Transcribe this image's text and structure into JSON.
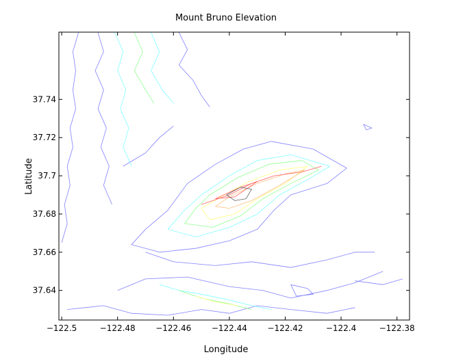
{
  "chart_data": {
    "type": "contour",
    "title": "Mount Bruno Elevation",
    "xlabel": "Longitude",
    "ylabel": "Latitude",
    "xlim": [
      -122.501,
      -122.3755
    ],
    "ylim": [
      37.6245,
      37.7752
    ],
    "x_ticks": [
      -122.5,
      -122.48,
      -122.46,
      -122.44,
      -122.42,
      -122.4,
      -122.38
    ],
    "x_tick_labels": [
      "−122.5",
      "−122.48",
      "−122.46",
      "−122.44",
      "−122.42",
      "−122.4",
      "−122.38"
    ],
    "y_ticks": [
      37.64,
      37.66,
      37.68,
      37.7,
      37.72,
      37.74
    ],
    "y_tick_labels": [
      "37.64",
      "37.66",
      "37.68",
      "37.7",
      "37.72",
      "37.74"
    ],
    "grid": false,
    "colors": [
      "#8080ff",
      "#80ffff",
      "#90ff90",
      "#ffff80",
      "#ffc080",
      "#ff6060",
      "#606060"
    ],
    "contours": [
      {
        "level": 1,
        "color": "#8080ff",
        "paths": [
          [
            [
              -122.494,
              37.775
            ],
            [
              -122.496,
              37.765
            ],
            [
              -122.495,
              37.755
            ],
            [
              -122.496,
              37.745
            ],
            [
              -122.495,
              37.735
            ],
            [
              -122.497,
              37.725
            ],
            [
              -122.496,
              37.715
            ],
            [
              -122.498,
              37.705
            ],
            [
              -122.497,
              37.695
            ],
            [
              -122.499,
              37.685
            ],
            [
              -122.498,
              37.675
            ],
            [
              -122.5,
              37.665
            ]
          ],
          [
            [
              -122.487,
              37.775
            ],
            [
              -122.485,
              37.765
            ],
            [
              -122.488,
              37.755
            ],
            [
              -122.485,
              37.745
            ],
            [
              -122.487,
              37.735
            ],
            [
              -122.484,
              37.725
            ],
            [
              -122.486,
              37.715
            ],
            [
              -122.483,
              37.705
            ],
            [
              -122.485,
              37.695
            ],
            [
              -122.482,
              37.685
            ]
          ],
          [
            [
              -122.458,
              37.775
            ],
            [
              -122.455,
              37.766
            ],
            [
              -122.458,
              37.758
            ],
            [
              -122.453,
              37.75
            ],
            [
              -122.45,
              37.742
            ],
            [
              -122.447,
              37.736
            ]
          ],
          [
            [
              -122.478,
              37.705
            ],
            [
              -122.47,
              37.712
            ],
            [
              -122.465,
              37.72
            ],
            [
              -122.46,
              37.726
            ]
          ],
          [
            [
              -122.455,
              37.696
            ],
            [
              -122.445,
              37.706
            ],
            [
              -122.435,
              37.714
            ],
            [
              -122.425,
              37.718
            ],
            [
              -122.41,
              37.714
            ],
            [
              -122.398,
              37.704
            ],
            [
              -122.405,
              37.696
            ],
            [
              -122.418,
              37.69
            ],
            [
              -122.424,
              37.682
            ],
            [
              -122.43,
              37.672
            ],
            [
              -122.44,
              37.666
            ],
            [
              -122.452,
              37.662
            ],
            [
              -122.465,
              37.66
            ],
            [
              -122.475,
              37.664
            ],
            [
              -122.47,
              37.672
            ],
            [
              -122.462,
              37.682
            ],
            [
              -122.455,
              37.696
            ]
          ],
          [
            [
              -122.47,
              37.66
            ],
            [
              -122.46,
              37.655
            ],
            [
              -122.445,
              37.653
            ],
            [
              -122.432,
              37.655
            ],
            [
              -122.418,
              37.652
            ],
            [
              -122.405,
              37.656
            ],
            [
              -122.395,
              37.66
            ],
            [
              -122.388,
              37.66
            ]
          ],
          [
            [
              -122.48,
              37.64
            ],
            [
              -122.47,
              37.646
            ],
            [
              -122.455,
              37.647
            ],
            [
              -122.44,
              37.642
            ],
            [
              -122.428,
              37.64
            ],
            [
              -122.418,
              37.636
            ],
            [
              -122.405,
              37.64
            ],
            [
              -122.395,
              37.644
            ],
            [
              -122.385,
              37.65
            ]
          ],
          [
            [
              -122.498,
              37.63
            ],
            [
              -122.485,
              37.632
            ],
            [
              -122.475,
              37.628
            ],
            [
              -122.462,
              37.627
            ],
            [
              -122.45,
              37.63
            ],
            [
              -122.44,
              37.628
            ],
            [
              -122.43,
              37.632
            ],
            [
              -122.418,
              37.63
            ],
            [
              -122.405,
              37.628
            ],
            [
              -122.395,
              37.631
            ]
          ],
          [
            [
              -122.395,
              37.645
            ],
            [
              -122.385,
              37.643
            ],
            [
              -122.378,
              37.646
            ]
          ],
          [
            [
              -122.392,
              37.727
            ],
            [
              -122.389,
              37.725
            ],
            [
              -122.391,
              37.724
            ],
            [
              -122.392,
              37.727
            ]
          ],
          [
            [
              -122.418,
              37.643
            ],
            [
              -122.412,
              37.641
            ],
            [
              -122.41,
              37.638
            ],
            [
              -122.416,
              37.637
            ],
            [
              -122.418,
              37.643
            ]
          ]
        ]
      },
      {
        "level": 2,
        "color": "#80ffff",
        "paths": [
          [
            [
              -122.481,
              37.775
            ],
            [
              -122.478,
              37.765
            ],
            [
              -122.48,
              37.755
            ],
            [
              -122.477,
              37.745
            ],
            [
              -122.479,
              37.735
            ],
            [
              -122.476,
              37.725
            ],
            [
              -122.478,
              37.715
            ],
            [
              -122.475,
              37.705
            ]
          ],
          [
            [
              -122.45,
              37.69
            ],
            [
              -122.44,
              37.7
            ],
            [
              -122.43,
              37.708
            ],
            [
              -122.418,
              37.711
            ],
            [
              -122.404,
              37.705
            ],
            [
              -122.412,
              37.698
            ],
            [
              -122.422,
              37.69
            ],
            [
              -122.43,
              37.68
            ],
            [
              -122.44,
              37.673
            ],
            [
              -122.452,
              37.668
            ],
            [
              -122.462,
              37.672
            ],
            [
              -122.456,
              37.682
            ],
            [
              -122.45,
              37.69
            ]
          ],
          [
            [
              -122.465,
              37.643
            ],
            [
              -122.458,
              37.64
            ],
            [
              -122.45,
              37.638
            ],
            [
              -122.44,
              37.635
            ],
            [
              -122.432,
              37.632
            ],
            [
              -122.425,
              37.63
            ]
          ],
          [
            [
              -122.468,
              37.775
            ],
            [
              -122.465,
              37.765
            ],
            [
              -122.468,
              37.755
            ],
            [
              -122.464,
              37.745
            ],
            [
              -122.46,
              37.738
            ]
          ]
        ]
      },
      {
        "level": 3,
        "color": "#90ff90",
        "paths": [
          [
            [
              -122.474,
              37.775
            ],
            [
              -122.471,
              37.765
            ],
            [
              -122.474,
              37.755
            ],
            [
              -122.47,
              37.745
            ],
            [
              -122.467,
              37.738
            ]
          ],
          [
            [
              -122.447,
              37.69
            ],
            [
              -122.437,
              37.699
            ],
            [
              -122.426,
              37.706
            ],
            [
              -122.414,
              37.708
            ],
            [
              -122.408,
              37.703
            ],
            [
              -122.418,
              37.696
            ],
            [
              -122.428,
              37.688
            ],
            [
              -122.436,
              37.679
            ],
            [
              -122.446,
              37.673
            ],
            [
              -122.456,
              37.675
            ],
            [
              -122.452,
              37.683
            ],
            [
              -122.447,
              37.69
            ]
          ],
          [
            [
              -122.458,
              37.64
            ],
            [
              -122.45,
              37.636
            ],
            [
              -122.44,
              37.633
            ],
            [
              -122.432,
              37.63
            ]
          ]
        ]
      },
      {
        "level": 4,
        "color": "#ffff80",
        "paths": [
          [
            [
              -122.443,
              37.689
            ],
            [
              -122.433,
              37.697
            ],
            [
              -122.422,
              37.703
            ],
            [
              -122.412,
              37.705
            ],
            [
              -122.42,
              37.696
            ],
            [
              -122.43,
              37.688
            ],
            [
              -122.438,
              37.68
            ],
            [
              -122.447,
              37.677
            ],
            [
              -122.45,
              37.683
            ],
            [
              -122.443,
              37.689
            ]
          ],
          [
            [
              -122.452,
              37.637
            ],
            [
              -122.445,
              37.634
            ],
            [
              -122.437,
              37.632
            ]
          ]
        ]
      },
      {
        "level": 5,
        "color": "#ffc080",
        "paths": [
          [
            [
              -122.44,
              37.689
            ],
            [
              -122.43,
              37.696
            ],
            [
              -122.42,
              37.701
            ],
            [
              -122.413,
              37.703
            ],
            [
              -122.422,
              37.695
            ],
            [
              -122.432,
              37.687
            ],
            [
              -122.44,
              37.683
            ],
            [
              -122.445,
              37.684
            ],
            [
              -122.44,
              37.689
            ]
          ]
        ]
      },
      {
        "level": 6,
        "color": "#ff6060",
        "paths": [
          [
            [
              -122.45,
              37.685
            ],
            [
              -122.44,
              37.69
            ],
            [
              -122.432,
              37.696
            ],
            [
              -122.424,
              37.7
            ],
            [
              -122.414,
              37.702
            ],
            [
              -122.407,
              37.705
            ]
          ],
          [
            [
              -122.445,
              37.688
            ],
            [
              -122.436,
              37.694
            ],
            [
              -122.43,
              37.697
            ],
            [
              -122.438,
              37.689
            ],
            [
              -122.445,
              37.688
            ]
          ]
        ]
      },
      {
        "level": 7,
        "color": "#606060",
        "paths": [
          [
            [
              -122.441,
              37.69
            ],
            [
              -122.436,
              37.694
            ],
            [
              -122.432,
              37.693
            ],
            [
              -122.434,
              37.688
            ],
            [
              -122.438,
              37.687
            ],
            [
              -122.441,
              37.69
            ]
          ]
        ]
      }
    ]
  }
}
